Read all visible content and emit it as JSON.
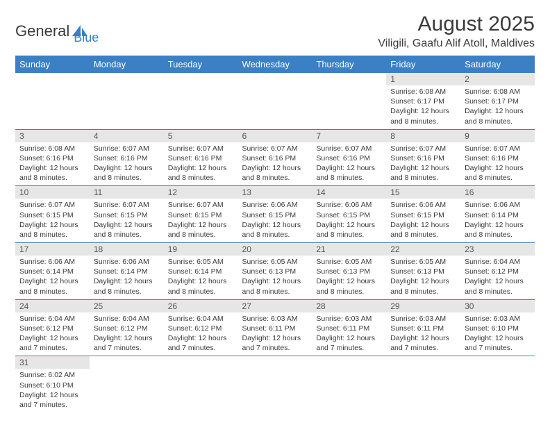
{
  "logo": {
    "text_general": "General",
    "text_blue": "Blue",
    "shape_color": "#3b7fc4"
  },
  "header": {
    "title": "August 2025",
    "location": "Viligili, Gaafu Alif Atoll, Maldives"
  },
  "style": {
    "header_bg": "#3b7fc4",
    "header_text": "#ffffff",
    "day_number_bg": "#e6e6e6",
    "day_number_color": "#555555",
    "body_text": "#3a3a3a",
    "border_color": "#3b7fc4"
  },
  "weekdays": [
    "Sunday",
    "Monday",
    "Tuesday",
    "Wednesday",
    "Thursday",
    "Friday",
    "Saturday"
  ],
  "days": [
    {
      "n": 1,
      "sunrise": "6:08 AM",
      "sunset": "6:17 PM",
      "daylight": "12 hours and 8 minutes."
    },
    {
      "n": 2,
      "sunrise": "6:08 AM",
      "sunset": "6:17 PM",
      "daylight": "12 hours and 8 minutes."
    },
    {
      "n": 3,
      "sunrise": "6:08 AM",
      "sunset": "6:16 PM",
      "daylight": "12 hours and 8 minutes."
    },
    {
      "n": 4,
      "sunrise": "6:07 AM",
      "sunset": "6:16 PM",
      "daylight": "12 hours and 8 minutes."
    },
    {
      "n": 5,
      "sunrise": "6:07 AM",
      "sunset": "6:16 PM",
      "daylight": "12 hours and 8 minutes."
    },
    {
      "n": 6,
      "sunrise": "6:07 AM",
      "sunset": "6:16 PM",
      "daylight": "12 hours and 8 minutes."
    },
    {
      "n": 7,
      "sunrise": "6:07 AM",
      "sunset": "6:16 PM",
      "daylight": "12 hours and 8 minutes."
    },
    {
      "n": 8,
      "sunrise": "6:07 AM",
      "sunset": "6:16 PM",
      "daylight": "12 hours and 8 minutes."
    },
    {
      "n": 9,
      "sunrise": "6:07 AM",
      "sunset": "6:16 PM",
      "daylight": "12 hours and 8 minutes."
    },
    {
      "n": 10,
      "sunrise": "6:07 AM",
      "sunset": "6:15 PM",
      "daylight": "12 hours and 8 minutes."
    },
    {
      "n": 11,
      "sunrise": "6:07 AM",
      "sunset": "6:15 PM",
      "daylight": "12 hours and 8 minutes."
    },
    {
      "n": 12,
      "sunrise": "6:07 AM",
      "sunset": "6:15 PM",
      "daylight": "12 hours and 8 minutes."
    },
    {
      "n": 13,
      "sunrise": "6:06 AM",
      "sunset": "6:15 PM",
      "daylight": "12 hours and 8 minutes."
    },
    {
      "n": 14,
      "sunrise": "6:06 AM",
      "sunset": "6:15 PM",
      "daylight": "12 hours and 8 minutes."
    },
    {
      "n": 15,
      "sunrise": "6:06 AM",
      "sunset": "6:15 PM",
      "daylight": "12 hours and 8 minutes."
    },
    {
      "n": 16,
      "sunrise": "6:06 AM",
      "sunset": "6:14 PM",
      "daylight": "12 hours and 8 minutes."
    },
    {
      "n": 17,
      "sunrise": "6:06 AM",
      "sunset": "6:14 PM",
      "daylight": "12 hours and 8 minutes."
    },
    {
      "n": 18,
      "sunrise": "6:06 AM",
      "sunset": "6:14 PM",
      "daylight": "12 hours and 8 minutes."
    },
    {
      "n": 19,
      "sunrise": "6:05 AM",
      "sunset": "6:14 PM",
      "daylight": "12 hours and 8 minutes."
    },
    {
      "n": 20,
      "sunrise": "6:05 AM",
      "sunset": "6:13 PM",
      "daylight": "12 hours and 8 minutes."
    },
    {
      "n": 21,
      "sunrise": "6:05 AM",
      "sunset": "6:13 PM",
      "daylight": "12 hours and 8 minutes."
    },
    {
      "n": 22,
      "sunrise": "6:05 AM",
      "sunset": "6:13 PM",
      "daylight": "12 hours and 8 minutes."
    },
    {
      "n": 23,
      "sunrise": "6:04 AM",
      "sunset": "6:12 PM",
      "daylight": "12 hours and 8 minutes."
    },
    {
      "n": 24,
      "sunrise": "6:04 AM",
      "sunset": "6:12 PM",
      "daylight": "12 hours and 7 minutes."
    },
    {
      "n": 25,
      "sunrise": "6:04 AM",
      "sunset": "6:12 PM",
      "daylight": "12 hours and 7 minutes."
    },
    {
      "n": 26,
      "sunrise": "6:04 AM",
      "sunset": "6:12 PM",
      "daylight": "12 hours and 7 minutes."
    },
    {
      "n": 27,
      "sunrise": "6:03 AM",
      "sunset": "6:11 PM",
      "daylight": "12 hours and 7 minutes."
    },
    {
      "n": 28,
      "sunrise": "6:03 AM",
      "sunset": "6:11 PM",
      "daylight": "12 hours and 7 minutes."
    },
    {
      "n": 29,
      "sunrise": "6:03 AM",
      "sunset": "6:11 PM",
      "daylight": "12 hours and 7 minutes."
    },
    {
      "n": 30,
      "sunrise": "6:03 AM",
      "sunset": "6:10 PM",
      "daylight": "12 hours and 7 minutes."
    },
    {
      "n": 31,
      "sunrise": "6:02 AM",
      "sunset": "6:10 PM",
      "daylight": "12 hours and 7 minutes."
    }
  ],
  "labels": {
    "sunrise": "Sunrise:",
    "sunset": "Sunset:",
    "daylight": "Daylight:"
  },
  "first_day_column": 5
}
